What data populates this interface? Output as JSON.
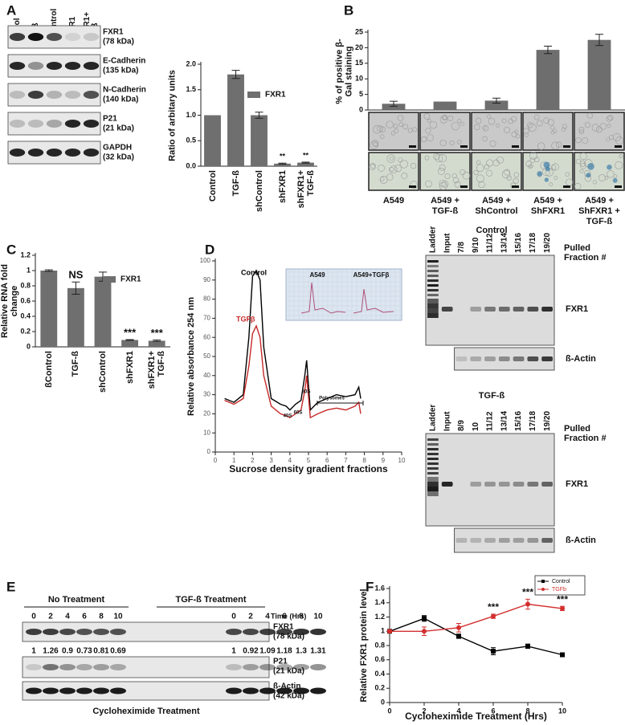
{
  "panel_labels": [
    "A",
    "B",
    "C",
    "D",
    "E",
    "F"
  ],
  "chart_data": [
    {
      "type": "bar",
      "y_label": "Ratio of arbitary units",
      "categories": [
        "Control",
        "TGF-ß",
        "shControl",
        "shFXR1",
        "shFXR1+ TGF-ß"
      ],
      "series": [
        {
          "name": "FXR1",
          "color": "#6f6f6f",
          "values": [
            1.0,
            1.8,
            1.0,
            0.05,
            0.07
          ],
          "errors": [
            null,
            0.08,
            0.06,
            0.01,
            0.01
          ]
        }
      ],
      "star_labels": [
        null,
        null,
        null,
        "**",
        "**"
      ],
      "ylim": [
        0,
        2.0
      ],
      "yticks": [
        {
          "value": 0,
          "label": "0.0"
        },
        0.5,
        {
          "value": 1,
          "label": "1.0"
        },
        1.5,
        {
          "value": 2,
          "label": "2.0"
        }
      ]
    },
    {
      "type": "bar",
      "y_label": "% of positive β-Gal staining",
      "categories": [
        "A549",
        "A549 + TGF-ß",
        "A549 + ShControl",
        "A549 + ShFXR1",
        "A549 + ShFXR1 + TGF-ß"
      ],
      "values": [
        2,
        2.7,
        3,
        19.3,
        22.5
      ],
      "errors": [
        0.8,
        null,
        0.8,
        1.2,
        1.8
      ],
      "color": "#6e6e6e",
      "ylim": [
        0,
        25
      ],
      "yticks": [
        0,
        5,
        10,
        15,
        20,
        25
      ]
    },
    {
      "type": "bar",
      "y_label": "Relative RNA fold change",
      "categories": [
        "ßControl",
        "TGF-ß",
        "shControl",
        "shFXR1",
        "shFXR1+ TGF-ß"
      ],
      "series": [
        {
          "name": "FXR1",
          "color": "#6f6f6f",
          "values": [
            1.0,
            0.77,
            0.92,
            0.09,
            0.08
          ],
          "errors": [
            0.01,
            0.08,
            0.06,
            0.005,
            0.01
          ]
        }
      ],
      "star_labels": [
        null,
        "NS",
        null,
        "***",
        "***"
      ],
      "ylim": [
        0,
        1.2
      ],
      "yticks": [
        0,
        0.2,
        0.4,
        0.6,
        0.8,
        1,
        1.2
      ]
    },
    {
      "type": "line",
      "x_label": "Sucrose density gradient fractions",
      "y_label": "Relative absorbance 254 nm",
      "x": [
        0.5,
        1,
        1.5,
        1.8,
        2,
        2.2,
        2.4,
        2.6,
        3,
        3.5,
        3.8,
        4,
        4.3,
        4.6,
        4.8,
        4.9,
        5.1,
        5.5,
        6,
        6.5,
        7,
        7.5,
        7.7,
        7.8
      ],
      "series": [
        {
          "name": "Control",
          "color": "#000000",
          "values": [
            28,
            26,
            30,
            60,
            92,
            95,
            90,
            55,
            28,
            25,
            24,
            22,
            25,
            27,
            40,
            48,
            22,
            26,
            28,
            30,
            29,
            30,
            34,
            28
          ]
        },
        {
          "name": "TGFβ",
          "color": "#c62828",
          "values": [
            27,
            25,
            28,
            45,
            62,
            66,
            60,
            40,
            24,
            20,
            19,
            18,
            20,
            22,
            32,
            40,
            18,
            20,
            22,
            23,
            22,
            24,
            26,
            20
          ]
        }
      ],
      "annotations": [
        "40S",
        "60S",
        "80S",
        "Polysomes"
      ],
      "inset_labels": [
        "A549",
        "A549+TGFβ"
      ],
      "xlim": [
        0,
        10
      ],
      "xticks": [
        0,
        1,
        2,
        3,
        4,
        5,
        6,
        7,
        8,
        9,
        10
      ],
      "ylim": [
        0,
        100
      ],
      "yticks": [
        0,
        10,
        20,
        30,
        40,
        50,
        60,
        70,
        80,
        90,
        100
      ]
    },
    {
      "type": "line",
      "x_label": "Cycloheximide Treatment (Hrs)",
      "y_label": "Relative FXR1 protein level",
      "x": [
        0,
        2,
        4,
        6,
        8,
        10
      ],
      "series": [
        {
          "name": "Control",
          "color": "#000000",
          "values": [
            1.0,
            1.18,
            0.93,
            0.72,
            0.79,
            0.67
          ],
          "errors": [
            0.02,
            0.04,
            0.03,
            0.05,
            0.03,
            0.02
          ]
        },
        {
          "name": "TGFb",
          "color": "#d32f2f",
          "values": [
            1.0,
            1.0,
            1.05,
            1.21,
            1.38,
            1.32
          ],
          "errors": [
            0.02,
            0.06,
            0.06,
            0.03,
            0.07,
            0.03
          ]
        }
      ],
      "star_labels": [
        null,
        null,
        null,
        "***",
        "***",
        "***"
      ],
      "legend": "upper right",
      "xlim": [
        0,
        10
      ],
      "xticks": [
        0,
        2,
        4,
        6,
        8,
        10
      ],
      "ylim": [
        0,
        1.6
      ],
      "yticks": [
        0,
        0.2,
        0.4,
        0.6,
        0.8,
        1,
        1.2,
        1.4,
        1.6
      ]
    }
  ],
  "blot_a": {
    "lanes": [
      [
        "Control"
      ],
      [
        "TGF-ß"
      ],
      [
        "shControl"
      ],
      [
        "shFXR1"
      ],
      [
        "shFXR1+",
        "TGF-ß"
      ]
    ],
    "rows": [
      [
        "FXR1",
        "(78 kDa)"
      ],
      [
        "E-Cadherin",
        "(135 kDa)"
      ],
      [
        "N-Cadherin",
        "(140 kDa)"
      ],
      [
        "P21",
        "(21 kDa)"
      ],
      [
        "GAPDH",
        "(32 kDa)"
      ]
    ]
  },
  "gels_d": [
    {
      "title": "Control",
      "lanes": [
        "Ladder",
        "Input",
        "7/8",
        "9/10",
        "11/12",
        "13/14",
        "15/16",
        "17/18",
        "19/20"
      ],
      "fraction_label": "Pulled Fraction #",
      "rows": [
        "FXR1",
        "ß-Actin"
      ]
    },
    {
      "title": "TGF-ß",
      "lanes": [
        "Ladder",
        "Input",
        "8/9",
        "10",
        "11/12",
        "13/14",
        "15/16",
        "17/18",
        "19/20"
      ],
      "fraction_label": "Pulled Fraction #",
      "rows": [
        "FXR1",
        "ß-Actin"
      ]
    }
  ],
  "blot_e": {
    "groups": [
      "No Treatment",
      "TGF-ß Treatment"
    ],
    "time_label": "Time (Hrs)",
    "times": [
      0,
      2,
      4,
      6,
      8,
      10,
      0,
      2,
      4,
      6,
      8,
      10
    ],
    "quant": [
      1,
      1.26,
      0.9,
      0.73,
      0.81,
      0.69,
      1,
      0.92,
      1.09,
      1.18,
      1.3,
      1.31
    ],
    "rows": [
      [
        "FXR1",
        "(78 kDa)"
      ],
      [
        "P21",
        "(21 kDa)"
      ],
      [
        "ß-Actin",
        "(42 kDa)"
      ]
    ],
    "footer": "Cycloheximide Treatment"
  }
}
